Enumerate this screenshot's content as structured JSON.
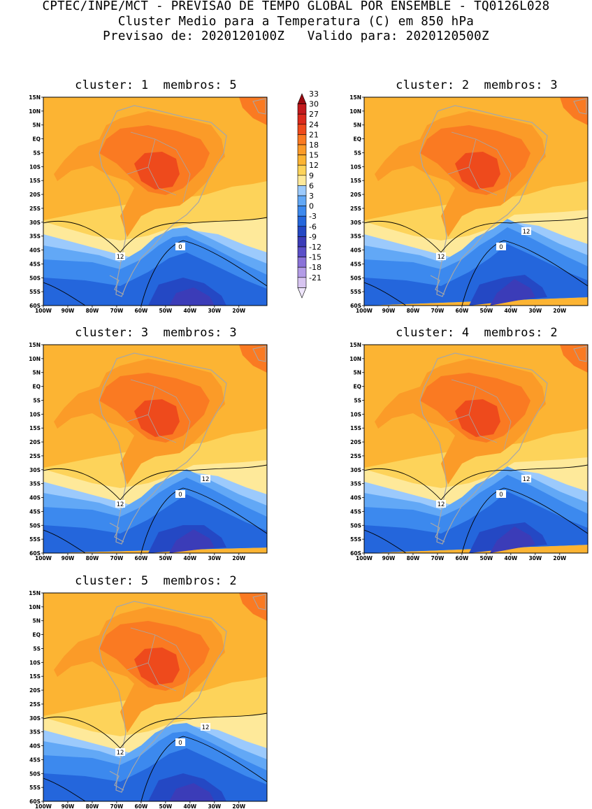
{
  "header": {
    "line1": "CPTEC/INPE/MCT - PREVISAO DE TEMPO GLOBAL POR ENSEMBLE - TQ0126L028",
    "line2": "Cluster Medio para a Temperatura (C) em 850 hPa",
    "line3": "Previsao de: 2020120100Z   Valido para: 2020120500Z"
  },
  "panels": [
    {
      "title": "cluster: 1  membros: 5",
      "contour_labels": [
        "12",
        "0"
      ]
    },
    {
      "title": "cluster: 2  membros: 3",
      "contour_labels": [
        "12",
        "0",
        "12"
      ]
    },
    {
      "title": "cluster: 3  membros: 3",
      "contour_labels": [
        "12",
        "0",
        "12"
      ]
    },
    {
      "title": "cluster: 4  membros: 2",
      "contour_labels": [
        "12",
        "0",
        "12"
      ]
    },
    {
      "title": "cluster: 5  membros: 2",
      "contour_labels": [
        "12",
        "0",
        "12"
      ]
    }
  ],
  "axes": {
    "lat_labels": [
      "15N",
      "10N",
      "5N",
      "EQ",
      "5S",
      "10S",
      "15S",
      "20S",
      "25S",
      "30S",
      "35S",
      "40S",
      "45S",
      "50S",
      "55S",
      "60S"
    ],
    "lon_labels": [
      "100W",
      "90W",
      "80W",
      "70W",
      "60W",
      "50W",
      "40W",
      "30W",
      "20W"
    ]
  },
  "colorbar": {
    "labels": [
      "33",
      "30",
      "27",
      "24",
      "21",
      "18",
      "15",
      "12",
      "9",
      "6",
      "3",
      "0",
      "-3",
      "-6",
      "-9",
      "-12",
      "-15",
      "-18",
      "-21"
    ],
    "colors": [
      "#9b0a10",
      "#c31a1d",
      "#db2a1c",
      "#ee4a1c",
      "#fa7a22",
      "#fb9b28",
      "#fcb433",
      "#fdd35a",
      "#fee99a",
      "#9ccafc",
      "#62a8f6",
      "#3c89ee",
      "#2466dc",
      "#2448c4",
      "#3b3cb8",
      "#5a4fc8",
      "#8a72d8",
      "#b39ce6",
      "#d7c4f0",
      "#efe6fb"
    ]
  }
}
